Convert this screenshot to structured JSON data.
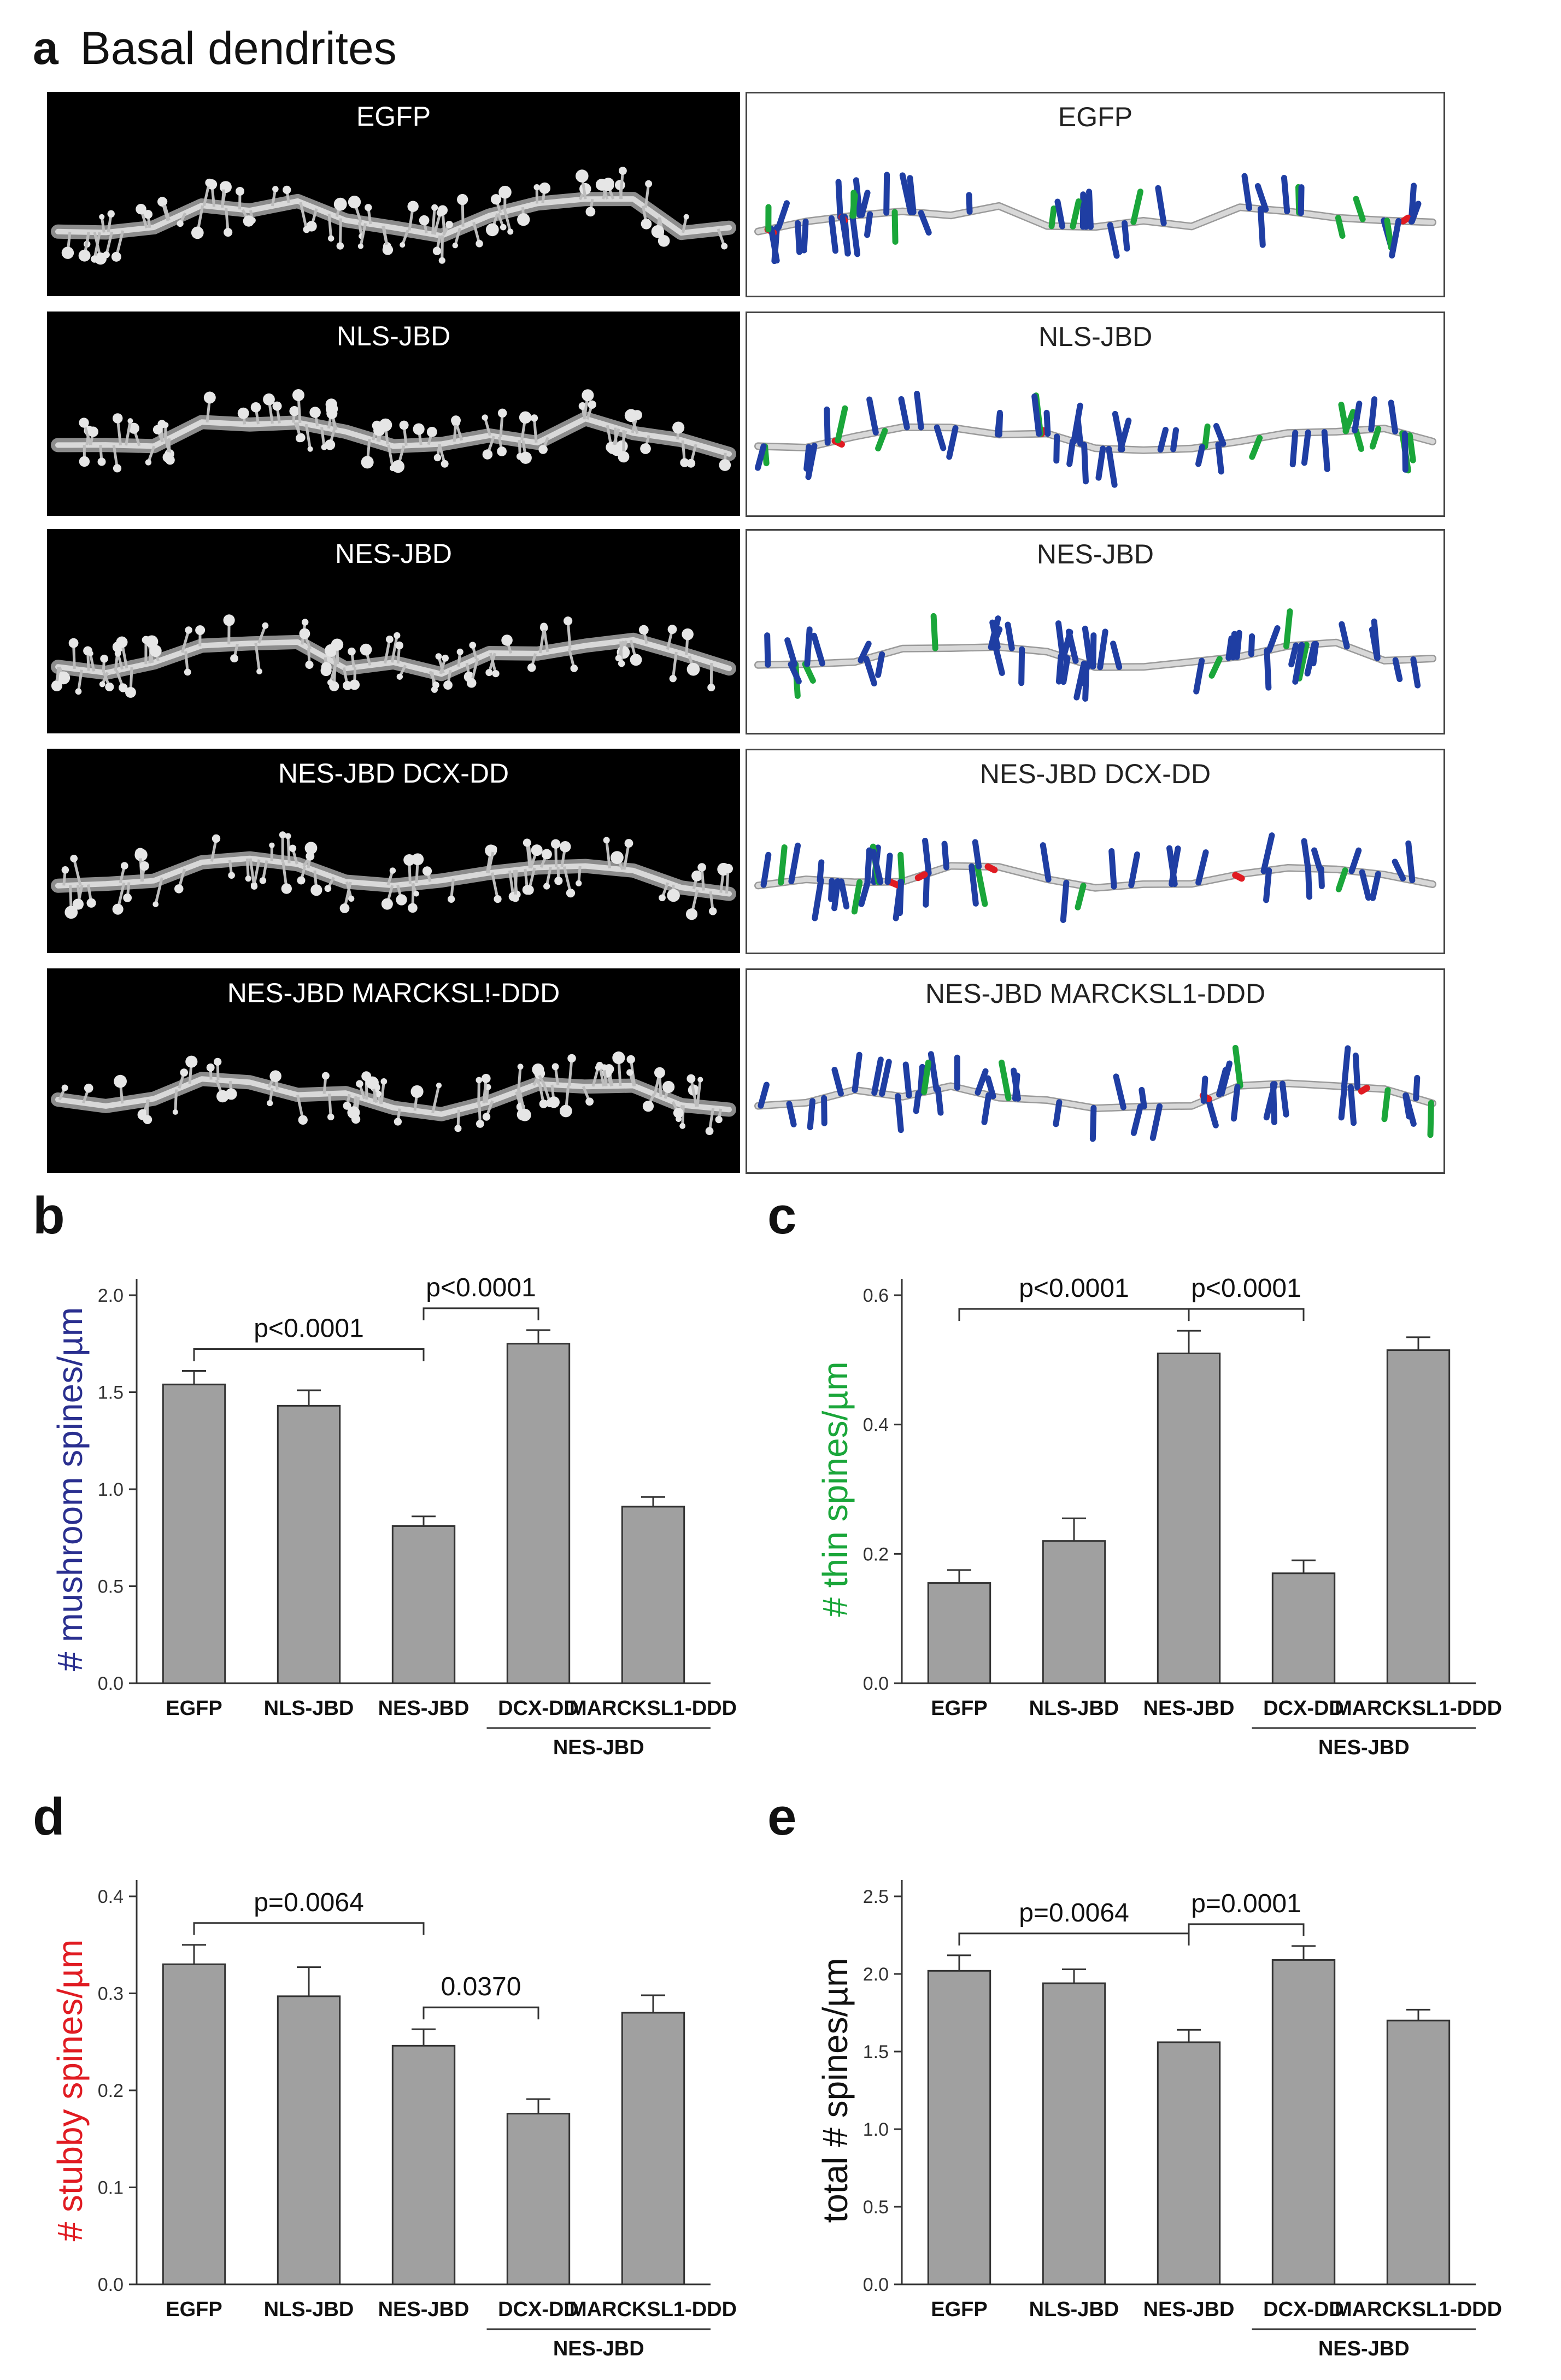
{
  "figure": {
    "panel_a_letter": "a",
    "panel_a_title": "Basal dendrites",
    "rows": [
      {
        "micro_label": "EGFP",
        "recon_label": "EGFP"
      },
      {
        "micro_label": "NLS-JBD",
        "recon_label": "NLS-JBD"
      },
      {
        "micro_label": "NES-JBD",
        "recon_label": "NES-JBD"
      },
      {
        "micro_label": "NES-JBD DCX-DD",
        "recon_label": "NES-JBD DCX-DD"
      },
      {
        "micro_label": "NES-JBD MARCKSL!-DDD",
        "recon_label": "NES-JBD MARCKSL1-DDD"
      }
    ],
    "colors": {
      "mushroom": "#1f3ea3",
      "thin": "#1aa63a",
      "stubby": "#e01b22",
      "bar": "#a0a0a0",
      "dendrite": "#d8d8d8"
    }
  },
  "chart_data": [
    {
      "panel": "b",
      "type": "bar",
      "ylabel_prefix": "# ",
      "ylabel_main": "mushroom spines/µm",
      "ylabel_color": "#2a2f8f",
      "categories": [
        "EGFP",
        "NLS-JBD",
        "NES-JBD",
        "DCX-DD",
        "MARCKSL1-DDD"
      ],
      "values": [
        1.54,
        1.43,
        0.81,
        1.75,
        0.91
      ],
      "errors": [
        0.07,
        0.08,
        0.05,
        0.07,
        0.05
      ],
      "ylim": [
        0,
        2.0
      ],
      "yticks": [
        "0.0",
        "0.5",
        "1.0",
        "1.5",
        "2.0"
      ],
      "group_label": "NES-JBD",
      "comparisons": [
        {
          "from": 0,
          "to": 2,
          "label": "p<0.0001"
        },
        {
          "from": 2,
          "to": 3,
          "label": "p<0.0001"
        }
      ]
    },
    {
      "panel": "c",
      "type": "bar",
      "ylabel_prefix": "# ",
      "ylabel_main": "thin spines/µm",
      "ylabel_color": "#1aa63a",
      "categories": [
        "EGFP",
        "NLS-JBD",
        "NES-JBD",
        "DCX-DD",
        "MARCKSL1-DDD"
      ],
      "values": [
        0.155,
        0.22,
        0.51,
        0.17,
        0.515
      ],
      "errors": [
        0.02,
        0.035,
        0.035,
        0.02,
        0.02
      ],
      "ylim": [
        0,
        0.6
      ],
      "yticks": [
        "0.0",
        "0.2",
        "0.4",
        "0.6"
      ],
      "group_label": "NES-JBD",
      "comparisons": [
        {
          "from": 0,
          "to": 2,
          "label": "p<0.0001"
        },
        {
          "from": 2,
          "to": 3,
          "label": "p<0.0001"
        }
      ]
    },
    {
      "panel": "d",
      "type": "bar",
      "ylabel_prefix": "# ",
      "ylabel_main": "stubby spines/µm",
      "ylabel_color": "#e01b22",
      "categories": [
        "EGFP",
        "NLS-JBD",
        "NES-JBD",
        "DCX-DD",
        "MARCKSL1-DDD"
      ],
      "values": [
        0.33,
        0.297,
        0.246,
        0.176,
        0.28
      ],
      "errors": [
        0.02,
        0.03,
        0.017,
        0.015,
        0.018
      ],
      "ylim": [
        0,
        0.4
      ],
      "yticks": [
        "0.0",
        "0.1",
        "0.2",
        "0.3",
        "0.4"
      ],
      "group_label": "NES-JBD",
      "comparisons": [
        {
          "from": 0,
          "to": 2,
          "label": "p=0.0064"
        },
        {
          "from": 2,
          "to": 3,
          "label": "0.0370"
        }
      ]
    },
    {
      "panel": "e",
      "type": "bar",
      "ylabel_prefix": "total # ",
      "ylabel_main": "spines/µm",
      "ylabel_color": "#111111",
      "categories": [
        "EGFP",
        "NLS-JBD",
        "NES-JBD",
        "DCX-DD",
        "MARCKSL1-DDD"
      ],
      "values": [
        2.02,
        1.94,
        1.56,
        2.09,
        1.7
      ],
      "errors": [
        0.1,
        0.09,
        0.08,
        0.09,
        0.07
      ],
      "ylim": [
        0,
        2.5
      ],
      "yticks": [
        "0.0",
        "0.5",
        "1.0",
        "1.5",
        "2.0",
        "2.5"
      ],
      "group_label": "NES-JBD",
      "comparisons": [
        {
          "from": 0,
          "to": 2,
          "label": "p=0.0064"
        },
        {
          "from": 2,
          "to": 3,
          "label": "p=0.0001"
        }
      ]
    }
  ]
}
